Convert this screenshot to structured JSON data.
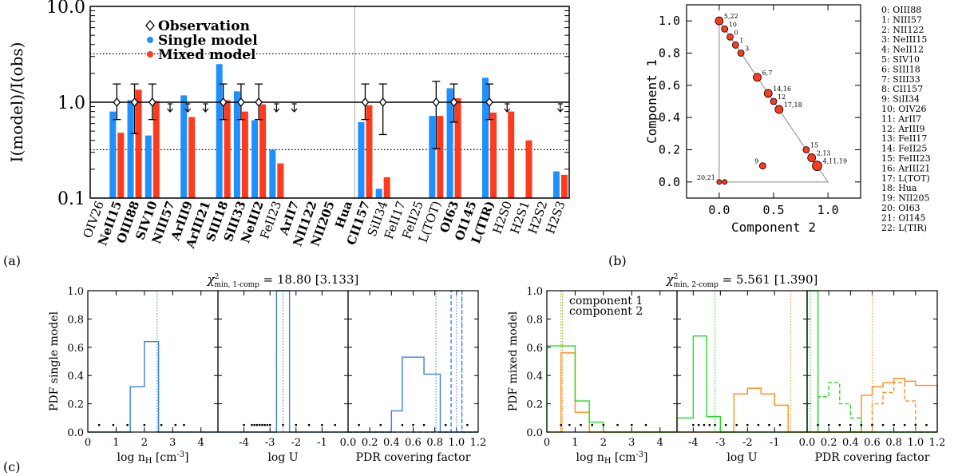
{
  "colors": {
    "single": "#1e90ff",
    "mixed": "#ff3b1f",
    "c1": "#ff8c1a",
    "c2": "#22dd22",
    "pt": "#ff3b1f",
    "hist1": "#3a7fdc"
  },
  "panel_labels": [
    "(a)",
    "(b)",
    "(c)"
  ],
  "chart_data": [
    {
      "id": "a",
      "type": "bar",
      "scale": "log",
      "ylabel": "I(model)/I(obs)",
      "ylim": [
        0.1,
        10
      ],
      "yticks": [
        {
          "v": 0.1,
          "label": "0.1"
        },
        {
          "v": 1,
          "label": "1.0"
        },
        {
          "v": 10,
          "label": "10.0"
        }
      ],
      "dotted_lines": [
        3.2,
        0.32
      ],
      "legend": [
        "Observation",
        "Single model",
        "Mixed model"
      ],
      "categories": [
        {
          "label": "OIV26",
          "bold": false,
          "single": null,
          "mixed": null,
          "obs": false,
          "ul": false
        },
        {
          "label": "NeII15",
          "bold": true,
          "single": 0.8,
          "mixed": 0.48,
          "obs": true,
          "lo": 0.66,
          "hi": 1.55,
          "ul": false
        },
        {
          "label": "OIII88",
          "bold": true,
          "single": 1.05,
          "mixed": 1.35,
          "obs": true,
          "lo": 0.47,
          "hi": 1.55,
          "ul": false
        },
        {
          "label": "SIV10",
          "bold": true,
          "single": 0.45,
          "mixed": 1.03,
          "obs": true,
          "lo": 0.66,
          "hi": 1.55,
          "ul": false
        },
        {
          "label": "NIII57",
          "bold": true,
          "single": null,
          "mixed": null,
          "obs": false,
          "ul": true
        },
        {
          "label": "ArIII9",
          "bold": true,
          "single": 1.18,
          "mixed": 0.7,
          "obs": false,
          "ul": true
        },
        {
          "label": "ArIII21",
          "bold": true,
          "single": null,
          "mixed": null,
          "obs": false,
          "ul": true
        },
        {
          "label": "SIII18",
          "bold": true,
          "single": 2.5,
          "mixed": 1.05,
          "obs": true,
          "lo": 0.66,
          "hi": 1.55,
          "ul": false
        },
        {
          "label": "SIII33",
          "bold": true,
          "single": 1.3,
          "mixed": 0.8,
          "obs": true,
          "lo": 0.66,
          "hi": 1.55,
          "ul": false
        },
        {
          "label": "NeIII2",
          "bold": true,
          "single": 0.65,
          "mixed": 0.95,
          "obs": true,
          "lo": 0.66,
          "hi": 1.55,
          "ul": false
        },
        {
          "label": "FeII23",
          "bold": false,
          "single": 0.32,
          "mixed": 0.23,
          "obs": false,
          "ul": true
        },
        {
          "label": "ArII7",
          "bold": true,
          "single": null,
          "mixed": null,
          "obs": false,
          "ul": true
        },
        {
          "label": "NII122",
          "bold": true,
          "single": null,
          "mixed": null,
          "obs": false,
          "ul": false
        },
        {
          "label": "NII205",
          "bold": true,
          "single": null,
          "mixed": null,
          "obs": false,
          "ul": false
        },
        {
          "label": "Hua",
          "bold": true,
          "single": null,
          "mixed": null,
          "obs": false,
          "ul": false
        },
        {
          "label": "CII157",
          "bold": true,
          "single": 0.62,
          "mixed": 0.93,
          "obs": true,
          "lo": 0.66,
          "hi": 1.55,
          "ul": false
        },
        {
          "label": "SiII34",
          "bold": false,
          "single": 0.125,
          "mixed": 0.165,
          "obs": true,
          "lo": 0.46,
          "hi": 1.55,
          "ul": false
        },
        {
          "label": "FeII17",
          "bold": false,
          "single": null,
          "mixed": null,
          "obs": false,
          "ul": false
        },
        {
          "label": "FeII25",
          "bold": false,
          "single": null,
          "mixed": null,
          "obs": false,
          "ul": false
        },
        {
          "label": "L(TOT)",
          "bold": false,
          "single": 0.72,
          "mixed": 0.72,
          "obs": true,
          "lo": 0.33,
          "hi": 1.65,
          "ul": false
        },
        {
          "label": "OI63",
          "bold": true,
          "single": 1.4,
          "mixed": 1.1,
          "obs": true,
          "lo": 0.62,
          "hi": 1.55,
          "ul": false
        },
        {
          "label": "OI145",
          "bold": true,
          "single": null,
          "mixed": null,
          "obs": false,
          "ul": false
        },
        {
          "label": "L(TIR)",
          "bold": true,
          "single": 1.8,
          "mixed": 0.78,
          "obs": true,
          "lo": 0.66,
          "hi": 1.55,
          "ul": false
        },
        {
          "label": "H2S0",
          "bold": false,
          "single": null,
          "mixed": 0.8,
          "obs": false,
          "ul": true
        },
        {
          "label": "H2S1",
          "bold": false,
          "single": null,
          "mixed": 0.4,
          "obs": false,
          "ul": false
        },
        {
          "label": "H2S2",
          "bold": false,
          "single": null,
          "mixed": null,
          "obs": false,
          "ul": false
        },
        {
          "label": "H2S3",
          "bold": false,
          "single": 0.19,
          "mixed": 0.175,
          "obs": false,
          "ul": true
        }
      ]
    },
    {
      "id": "b",
      "type": "scatter",
      "xlabel": "Component 2",
      "ylabel": "Component 1",
      "xlim": [
        -0.3,
        1.3
      ],
      "ylim": [
        -0.1,
        1.1
      ],
      "xticks": [
        0.0,
        0.5,
        1.0
      ],
      "yticks": [
        0.0,
        0.2,
        0.4,
        0.6,
        0.8,
        1.0
      ],
      "xtick_labels": [
        "0.0",
        "0.5",
        "1.0"
      ],
      "ytick_labels": [
        "0.0",
        "0.2",
        "0.4",
        "0.6",
        "0.8",
        "1.0"
      ],
      "points": [
        {
          "x": 0.0,
          "y": 1.0,
          "r": 5,
          "label": "5,22"
        },
        {
          "x": 0.05,
          "y": 0.95,
          "r": 4,
          "label": "10"
        },
        {
          "x": 0.1,
          "y": 0.9,
          "r": 4,
          "label": "0"
        },
        {
          "x": 0.15,
          "y": 0.85,
          "r": 4,
          "label": "1"
        },
        {
          "x": 0.2,
          "y": 0.8,
          "r": 4,
          "label": "3"
        },
        {
          "x": 0.35,
          "y": 0.65,
          "r": 5,
          "label": "6,7"
        },
        {
          "x": 0.45,
          "y": 0.55,
          "r": 5,
          "label": "14,16"
        },
        {
          "x": 0.5,
          "y": 0.5,
          "r": 4,
          "label": "12"
        },
        {
          "x": 0.55,
          "y": 0.45,
          "r": 5,
          "label": "17,18"
        },
        {
          "x": 0.8,
          "y": 0.2,
          "r": 4,
          "label": "15"
        },
        {
          "x": 0.85,
          "y": 0.15,
          "r": 5,
          "label": "2,13"
        },
        {
          "x": 0.9,
          "y": 0.1,
          "r": 6,
          "label": "4,11,19"
        },
        {
          "x": 0.4,
          "y": 0.1,
          "r": 4,
          "label": "9"
        },
        {
          "x": 0.0,
          "y": 0.0,
          "r": 3,
          "label": "20,21"
        },
        {
          "x": 0.05,
          "y": 0.0,
          "r": 3,
          "label": ""
        }
      ],
      "key": [
        "0: OIII88",
        "1: NIII57",
        "2: NII122",
        "3: NeIII15",
        "4: NeII12",
        "5: SIV10",
        "6: SIII18",
        "7: SIII33",
        "8: CII157",
        "9: SiII34",
        "10: OIV26",
        "11:   ArII7",
        "12: ArIII9",
        "13: FeII17",
        "14: FeII25",
        "15: FeIII23",
        "16: ArIII21",
        "17: L(TOT)",
        "18:   Hua",
        "19: NII205",
        "20: OI63",
        "21: OI145",
        "22: L(TIR)"
      ]
    },
    {
      "id": "c-left",
      "type": "histogram",
      "title_pre": "χ",
      "title_sub": "min, 1-comp",
      "title_val": " = 18.80 [3.133]",
      "ylabel": "PDF single model",
      "ylim": [
        0,
        1
      ],
      "yticks": [
        "0.0",
        "0.2",
        "0.4",
        "0.6",
        "0.8",
        "1.0"
      ],
      "subplots": [
        {
          "xlabel": "log n_H [cm^-3]",
          "xlim": [
            0,
            4.6
          ],
          "xticks": [
            0,
            1,
            2,
            3,
            4
          ],
          "xtick_labels": [
            "0",
            "1",
            "2",
            "3",
            "4"
          ],
          "dotted": [
            {
              "x": 2.45,
              "c": "hist1"
            }
          ],
          "series": [
            {
              "c": "hist1",
              "dash": false,
              "edges": [
                0,
                1.5,
                2.0,
                2.5,
                3.0,
                4.6
              ],
              "vals": [
                0,
                0.32,
                0.64,
                0,
                0
              ]
            }
          ],
          "dots": [
            0.4,
            0.9,
            1.4,
            2.0,
            2.6,
            3.1,
            3.4
          ]
        },
        {
          "xlabel": "log U",
          "xlim": [
            -5,
            0
          ],
          "xticks": [
            -4,
            -3,
            -2,
            -1
          ],
          "xtick_labels": [
            "-4",
            "-3",
            "-2",
            "-1"
          ],
          "dotted": [
            {
              "x": -2.5,
              "c": "hist1"
            }
          ],
          "series": [
            {
              "c": "hist1",
              "dash": false,
              "edges": [
                -5,
                -2.75,
                -2.25,
                0
              ],
              "vals": [
                0,
                1.0,
                0
              ]
            }
          ],
          "dots": [
            -4.0,
            -3.7,
            -3.6,
            -3.5,
            -3.4,
            -3.3,
            -3.2,
            -3.1,
            -3.0,
            -2.5,
            -2.0,
            -1.5,
            -1.0,
            -0.5
          ]
        },
        {
          "xlabel": "PDR covering factor",
          "xlim": [
            0,
            1.2
          ],
          "xticks": [
            0,
            0.2,
            0.4,
            0.6,
            0.8,
            1.0,
            1.2
          ],
          "xtick_labels": [
            "0.0",
            "0.2",
            "0.4",
            "0.6",
            "0.8",
            "1.0",
            "1.2"
          ],
          "dotted": [
            {
              "x": 0.81,
              "c": "hist1"
            },
            {
              "x": 1.0,
              "c": "hist1"
            },
            {
              "x": 1.05,
              "c": "hist1"
            }
          ],
          "series": [
            {
              "c": "hist1",
              "dash": false,
              "edges": [
                0,
                0.4,
                0.5,
                0.7,
                0.85,
                1.2
              ],
              "vals": [
                0,
                0.15,
                0.53,
                0.41,
                0
              ]
            },
            {
              "c": "hist1",
              "dash": true,
              "edges": [
                0,
                0.95,
                1.05,
                1.2
              ],
              "vals": [
                0,
                1.0,
                0
              ]
            }
          ],
          "dots": [
            0.1,
            0.3,
            0.5,
            0.6,
            0.7,
            0.9,
            1.1
          ]
        }
      ]
    },
    {
      "id": "c-right",
      "type": "histogram",
      "title_pre": "χ",
      "title_sub": "min, 2-comp",
      "title_val": " = 5.561 [1.390]",
      "ylabel": "PDF mixed model",
      "legend": [
        {
          "text": "component 1",
          "c": "c1"
        },
        {
          "text": "component 2",
          "c": "c2"
        }
      ],
      "ylim": [
        0,
        1
      ],
      "yticks": [
        "0.0",
        "0.2",
        "0.4",
        "0.6",
        "0.8",
        "1.0"
      ],
      "subplots": [
        {
          "xlabel": "log n_H [cm^-3]",
          "xlim": [
            0,
            4.6
          ],
          "xticks": [
            0,
            1,
            2,
            3,
            4
          ],
          "xtick_labels": [
            "0",
            "1",
            "2",
            "3",
            "4"
          ],
          "dotted": [
            {
              "x": 0.55,
              "c": "c1"
            },
            {
              "x": 0.5,
              "c": "c2"
            }
          ],
          "series": [
            {
              "c": "c1",
              "dash": false,
              "edges": [
                0,
                0.5,
                1.0,
                1.5,
                4.6
              ],
              "vals": [
                0,
                0.56,
                0.14,
                0
              ]
            },
            {
              "c": "c2",
              "dash": false,
              "edges": [
                0,
                1.0,
                1.5,
                2.0,
                4.6
              ],
              "vals": [
                0.61,
                0.22,
                0.07,
                0
              ]
            }
          ],
          "dots": [
            0.5,
            0.8,
            1.2,
            1.6,
            2.0,
            2.5,
            3.0,
            3.5
          ]
        },
        {
          "xlabel": "log U",
          "xlim": [
            -4.6,
            0.2
          ],
          "xticks": [
            -4,
            -3,
            -2,
            -1
          ],
          "xtick_labels": [
            "-4",
            "-3",
            "-2",
            "-1"
          ],
          "dotted": [
            {
              "x": -0.4,
              "c": "c1"
            },
            {
              "x": -3.2,
              "c": "c2"
            }
          ],
          "series": [
            {
              "c": "c1",
              "dash": false,
              "edges": [
                -4.6,
                -2.5,
                -2.0,
                -1.5,
                -1.0,
                -0.5,
                0.2
              ],
              "vals": [
                0,
                0.27,
                0.31,
                0.27,
                0.19,
                0
              ]
            },
            {
              "c": "c2",
              "dash": false,
              "edges": [
                -4.6,
                -4.0,
                -3.5,
                -3.0,
                0.2
              ],
              "vals": [
                0.1,
                0.68,
                0.11,
                0
              ]
            }
          ],
          "dots": [
            -4.0,
            -3.8,
            -3.6,
            -3.4,
            -3.2,
            -2.8,
            -2.4,
            -2.0,
            -1.6,
            -1.2,
            -0.8
          ]
        },
        {
          "xlabel": "PDR covering factor",
          "xlim": [
            0,
            1.2
          ],
          "xticks": [
            0,
            0.2,
            0.4,
            0.6,
            0.8,
            1.0,
            1.2
          ],
          "xtick_labels": [
            "0.0",
            "0.2",
            "0.4",
            "0.6",
            "0.8",
            "1.0",
            "1.2"
          ],
          "dotted": [
            {
              "x": 0.6,
              "c": "c1"
            },
            {
              "x": 0.03,
              "c": "c2"
            }
          ],
          "series": [
            {
              "c": "c1",
              "dash": false,
              "edges": [
                0,
                0.5,
                0.6,
                0.7,
                0.8,
                0.9,
                1.0,
                1.2
              ],
              "vals": [
                0,
                0.26,
                0.32,
                0.35,
                0.38,
                0.36,
                0.33,
                0
              ]
            },
            {
              "c": "c1",
              "dash": true,
              "edges": [
                0,
                0.6,
                0.7,
                0.8,
                0.9,
                1.0,
                1.2
              ],
              "vals": [
                0,
                0.2,
                0.28,
                0.35,
                0.22,
                0
              ]
            },
            {
              "c": "c2",
              "dash": false,
              "edges": [
                0,
                0.1,
                1.2
              ],
              "vals": [
                1.0,
                0
              ]
            },
            {
              "c": "c2",
              "dash": true,
              "edges": [
                0,
                0.1,
                0.2,
                0.3,
                0.4,
                0.5,
                1.2
              ],
              "vals": [
                0,
                0.25,
                0.35,
                0.2,
                0.1,
                0
              ]
            }
          ],
          "dots": [
            0.1,
            0.2,
            0.3,
            0.4,
            0.5,
            0.6,
            0.7,
            0.8,
            0.9,
            1.0,
            1.1
          ]
        }
      ]
    }
  ]
}
